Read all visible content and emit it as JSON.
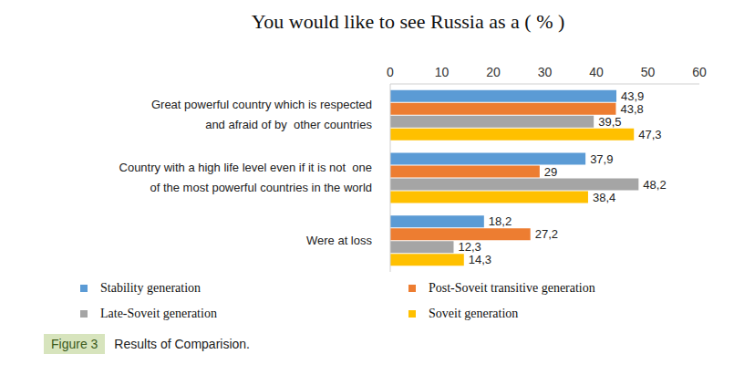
{
  "chart_data": {
    "type": "bar",
    "orientation": "horizontal",
    "title": "You would like to see Russia as a ( % )",
    "categories": [
      "Great powerful country which is respected\nand afraid of by  other countries",
      "Country with a high life level even if it is not  one\nof the most powerful countries in the world",
      "Were at loss"
    ],
    "series": [
      {
        "name": "Stability generation",
        "color": "#5B9BD5",
        "values": [
          43.9,
          37.9,
          18.2
        ],
        "value_labels": [
          "43,9",
          "37,9",
          "18,2"
        ]
      },
      {
        "name": "Post-Soveit transitive generation",
        "color": "#ED7D31",
        "values": [
          43.8,
          29,
          27.2
        ],
        "value_labels": [
          "43,8",
          "29",
          "27,2"
        ]
      },
      {
        "name": "Late-Soveit generation",
        "color": "#A5A5A5",
        "values": [
          39.5,
          48.2,
          12.3
        ],
        "value_labels": [
          "39,5",
          "48,2",
          "12,3"
        ]
      },
      {
        "name": "Soveit generation",
        "color": "#FFC000",
        "values": [
          47.3,
          38.4,
          14.3
        ],
        "value_labels": [
          "47,3",
          "38,4",
          "14,3"
        ]
      }
    ],
    "xlim": [
      0,
      60
    ],
    "xticks": [
      0,
      10,
      20,
      30,
      40,
      50,
      60
    ],
    "grid": false,
    "data_labels": true,
    "legend": "bottom",
    "figure_label": "Figure 3",
    "caption": "Results of Comparision."
  }
}
